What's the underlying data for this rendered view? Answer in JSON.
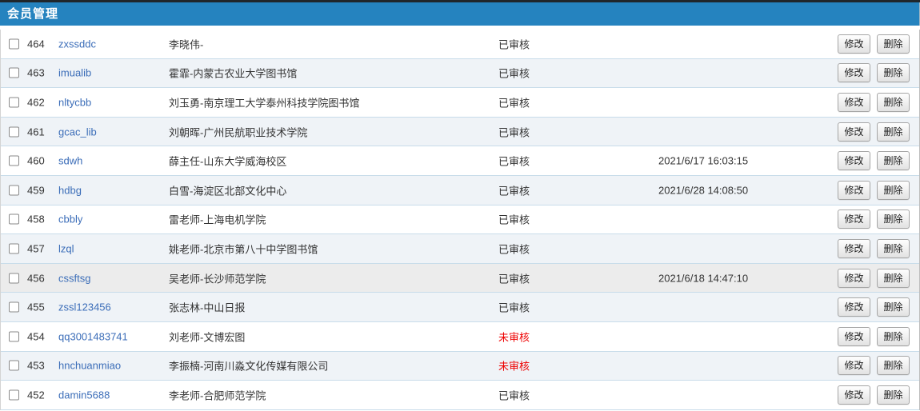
{
  "page": {
    "title": "会员管理",
    "accent_color": "#2583bf",
    "link_color": "#3b6db8",
    "pending_color": "#ee0000"
  },
  "actions": {
    "modify_label": "修改",
    "delete_label": "删除"
  },
  "members": [
    {
      "id": "464",
      "username": "zxssddc",
      "name": "李晓伟-",
      "status": "已审核",
      "pending": false,
      "time": "",
      "highlighted": false
    },
    {
      "id": "463",
      "username": "imualib",
      "name": "霍霏-内蒙古农业大学图书馆",
      "status": "已审核",
      "pending": false,
      "time": "",
      "highlighted": false
    },
    {
      "id": "462",
      "username": "nltycbb",
      "name": "刘玉勇-南京理工大学泰州科技学院图书馆",
      "status": "已审核",
      "pending": false,
      "time": "",
      "highlighted": false
    },
    {
      "id": "461",
      "username": "gcac_lib",
      "name": "刘朝晖-广州民航职业技术学院",
      "status": "已审核",
      "pending": false,
      "time": "",
      "highlighted": false
    },
    {
      "id": "460",
      "username": "sdwh",
      "name": "薛主任-山东大学威海校区",
      "status": "已审核",
      "pending": false,
      "time": "2021/6/17 16:03:15",
      "highlighted": false
    },
    {
      "id": "459",
      "username": "hdbg",
      "name": "白雪-海淀区北部文化中心",
      "status": "已审核",
      "pending": false,
      "time": "2021/6/28 14:08:50",
      "highlighted": false
    },
    {
      "id": "458",
      "username": "cbbly",
      "name": "雷老师-上海电机学院",
      "status": "已审核",
      "pending": false,
      "time": "",
      "highlighted": false
    },
    {
      "id": "457",
      "username": "lzql",
      "name": "姚老师-北京市第八十中学图书馆",
      "status": "已审核",
      "pending": false,
      "time": "",
      "highlighted": false
    },
    {
      "id": "456",
      "username": "cssftsg",
      "name": "吴老师-长沙师范学院",
      "status": "已审核",
      "pending": false,
      "time": "2021/6/18 14:47:10",
      "highlighted": true
    },
    {
      "id": "455",
      "username": "zssl123456",
      "name": "张志林-中山日报",
      "status": "已审核",
      "pending": false,
      "time": "",
      "highlighted": false
    },
    {
      "id": "454",
      "username": "qq3001483741",
      "name": "刘老师-文博宏图",
      "status": "未审核",
      "pending": true,
      "time": "",
      "highlighted": false
    },
    {
      "id": "453",
      "username": "hnchuanmiao",
      "name": "李振楠-河南川淼文化传媒有限公司",
      "status": "未审核",
      "pending": true,
      "time": "",
      "highlighted": false
    },
    {
      "id": "452",
      "username": "damin5688",
      "name": "李老师-合肥师范学院",
      "status": "已审核",
      "pending": false,
      "time": "",
      "highlighted": false
    }
  ]
}
